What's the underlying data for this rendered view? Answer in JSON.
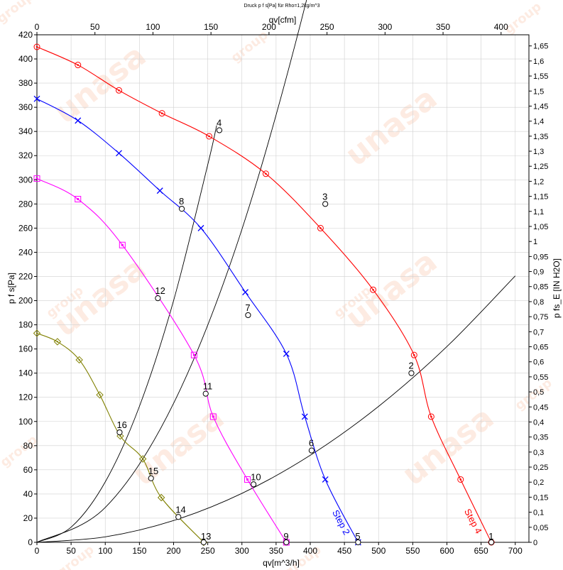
{
  "chart_data": {
    "type": "line",
    "title": "Druck p f s[Pa] für Rho=1,2kg/m^3",
    "xlabel": "qv[m^3/h]",
    "ylabel": "p f s[Pa]",
    "x2label": "qv[cfm]",
    "y2label": "p fs_E [IN H2O]",
    "xlim": [
      0,
      720
    ],
    "ylim": [
      0,
      420
    ],
    "x2lim": [
      0,
      424
    ],
    "y2lim": [
      0,
      1.687
    ],
    "grid": true,
    "x_ticks": [
      "0",
      "50",
      "100",
      "150",
      "200",
      "250",
      "300",
      "350",
      "400",
      "450",
      "500",
      "550",
      "600",
      "650",
      "700"
    ],
    "y_ticks": [
      "0",
      "20",
      "40",
      "60",
      "80",
      "100",
      "120",
      "140",
      "160",
      "180",
      "200",
      "220",
      "240",
      "260",
      "280",
      "300",
      "320",
      "340",
      "360",
      "380",
      "400",
      "420"
    ],
    "x2_ticks": [
      "0",
      "50",
      "100",
      "150",
      "200",
      "250",
      "300",
      "350",
      "400"
    ],
    "y2_ticks": [
      "0",
      "0,05",
      "0,1",
      "0,15",
      "0,2",
      "0,25",
      "0,3",
      "0,35",
      "0,4",
      "0,45",
      "0,5",
      "0,55",
      "0,6",
      "0,65",
      "0,7",
      "0,75",
      "0,8",
      "0,85",
      "0,9",
      "0,95",
      "1",
      "1,05",
      "1,1",
      "1,15",
      "1,2",
      "1,25",
      "1,3",
      "1,35",
      "1,4",
      "1,45",
      "1,5",
      "1,55",
      "1,6",
      "1,65"
    ],
    "series": [
      {
        "name": "Step 4",
        "color": "#ff0000",
        "marker": "circle",
        "x": [
          0,
          60,
          120,
          183,
          252,
          335,
          415,
          492,
          552,
          577,
          620,
          665
        ],
        "y": [
          410,
          395,
          374,
          355,
          336,
          305,
          260,
          209,
          155,
          104,
          52,
          0
        ]
      },
      {
        "name": "Step 2",
        "color": "#0000ff",
        "marker": "cross",
        "x": [
          0,
          60,
          120,
          180,
          240,
          305,
          365,
          392,
          422,
          470
        ],
        "y": [
          367,
          349,
          322,
          291,
          260,
          207,
          156,
          104,
          52,
          0
        ]
      },
      {
        "name": "",
        "color": "#ff00ff",
        "marker": "square",
        "x": [
          0,
          60,
          125,
          230,
          258,
          308,
          365
        ],
        "y": [
          301,
          284,
          246,
          155,
          104,
          52,
          0
        ]
      },
      {
        "name": "",
        "color": "#808000",
        "marker": "diamond",
        "x": [
          0,
          30,
          62,
          92,
          122,
          155,
          182,
          244
        ],
        "y": [
          173,
          166,
          151,
          122,
          88,
          69,
          37,
          0
        ]
      }
    ],
    "system_curves": [
      {
        "x": [
          0,
          100,
          200,
          300,
          400,
          500,
          600,
          700
        ],
        "y": [
          0,
          4.5,
          18,
          40.5,
          72,
          112.5,
          162,
          220.5
        ]
      },
      {
        "x": [
          0,
          100,
          200,
          300,
          400,
          476
        ],
        "y": [
          0,
          28.8,
          115,
          259,
          461,
          658
        ]
      },
      {
        "x": [
          0,
          50,
          100,
          150,
          200,
          250,
          263
        ],
        "y": [
          0,
          12.5,
          50,
          112.5,
          200,
          312.5,
          345
        ]
      }
    ],
    "operating_points": [
      {
        "label": "1",
        "x": 665,
        "y": 0
      },
      {
        "label": "2",
        "x": 548,
        "y": 140
      },
      {
        "label": "3",
        "x": 422,
        "y": 280
      },
      {
        "label": "4",
        "x": 267,
        "y": 341
      },
      {
        "label": "5",
        "x": 470,
        "y": 0
      },
      {
        "label": "6",
        "x": 402,
        "y": 76
      },
      {
        "label": "7",
        "x": 309,
        "y": 188
      },
      {
        "label": "8",
        "x": 212,
        "y": 276
      },
      {
        "label": "9",
        "x": 365,
        "y": 0
      },
      {
        "label": "10",
        "x": 317,
        "y": 48
      },
      {
        "label": "11",
        "x": 247,
        "y": 123
      },
      {
        "label": "12",
        "x": 177,
        "y": 202
      },
      {
        "label": "13",
        "x": 244,
        "y": 0
      },
      {
        "label": "14",
        "x": 207,
        "y": 21
      },
      {
        "label": "15",
        "x": 167,
        "y": 53
      },
      {
        "label": "16",
        "x": 121,
        "y": 91
      }
    ],
    "annotations": [
      "Step 4",
      "Step 2"
    ]
  },
  "watermark": {
    "text": "unasa",
    "text_small": "group",
    "color": "#f26522"
  }
}
